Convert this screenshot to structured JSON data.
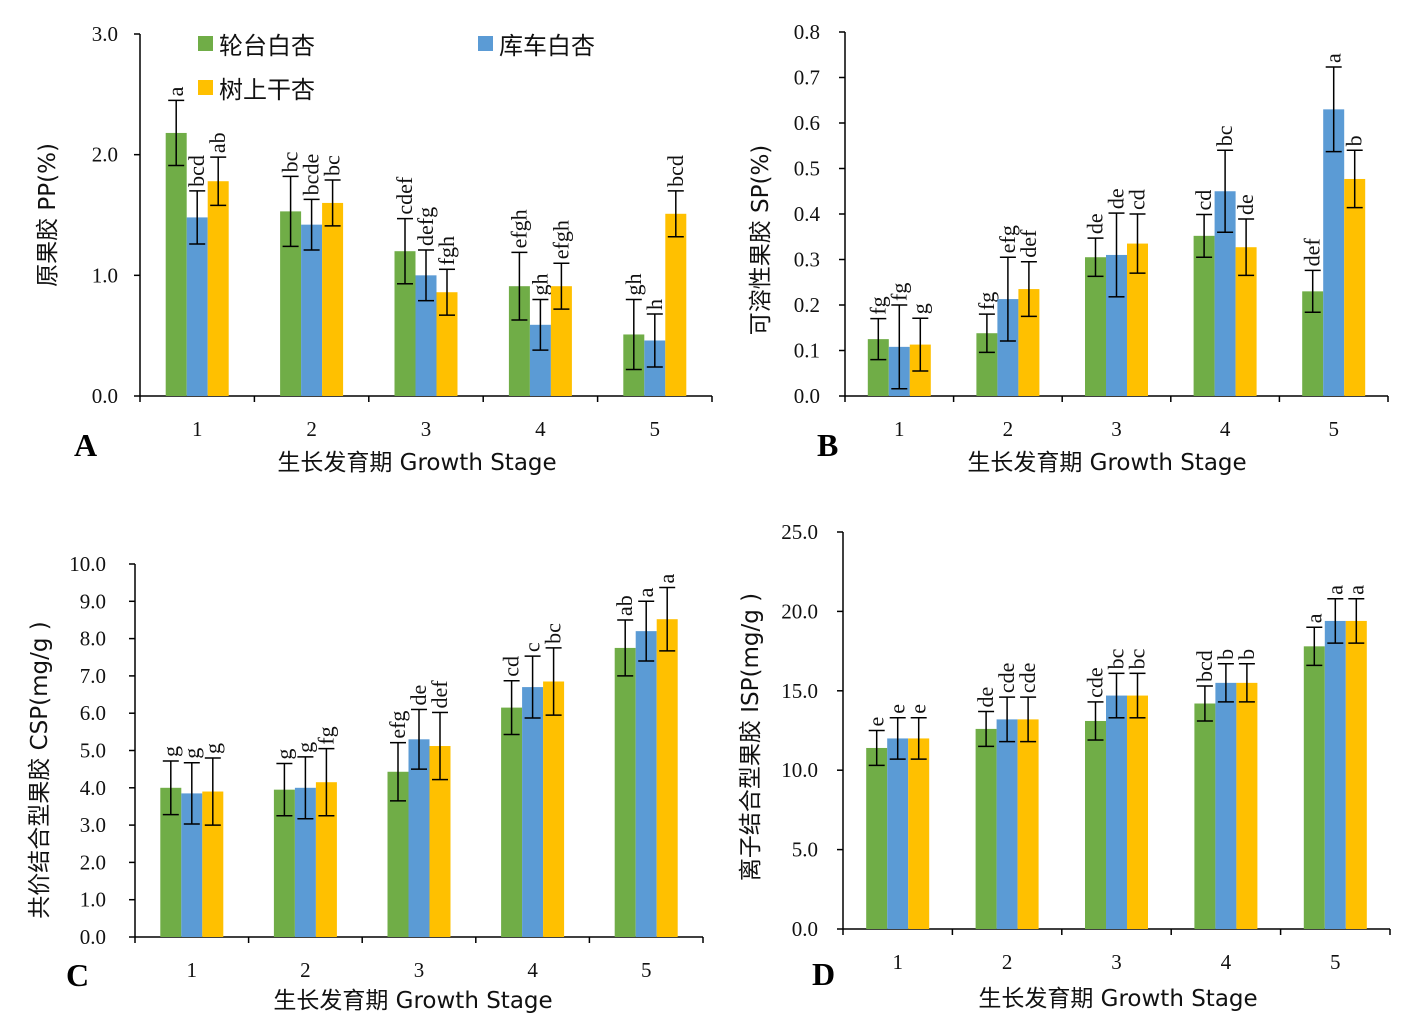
{
  "colors": {
    "series": [
      "#70AD47",
      "#5B9BD5",
      "#FFC000"
    ],
    "errorbar": "#000000",
    "axis": "#000000"
  },
  "legend": [
    "轮台白杏",
    "库车白杏",
    "树上干杏"
  ],
  "chart_data": [
    {
      "type": "bar",
      "panel": "A",
      "categories": [
        "1",
        "2",
        "3",
        "4",
        "5"
      ],
      "ylabel": "原果胶 PP(%)",
      "xlabel": "生长发育期 Growth Stage",
      "ylim": [
        0,
        3.0
      ],
      "yticks": [
        "0.0",
        "1.0",
        "2.0",
        "3.0"
      ],
      "legend_position": "top",
      "series": [
        {
          "name": "轮台白杏",
          "values": [
            2.18,
            1.53,
            1.2,
            0.91,
            0.51
          ],
          "errors": [
            0.27,
            0.29,
            0.27,
            0.28,
            0.29
          ],
          "labels": [
            "a",
            "bc",
            "cdef",
            "efgh",
            "gh"
          ]
        },
        {
          "name": "库车白杏",
          "values": [
            1.48,
            1.42,
            1.0,
            0.59,
            0.46
          ],
          "errors": [
            0.22,
            0.21,
            0.21,
            0.21,
            0.22
          ],
          "labels": [
            "bcd",
            "bcde",
            "defg",
            "gh",
            "h"
          ]
        },
        {
          "name": "树上干杏",
          "values": [
            1.78,
            1.6,
            0.86,
            0.91,
            1.51
          ],
          "errors": [
            0.2,
            0.19,
            0.19,
            0.19,
            0.19
          ],
          "labels": [
            "ab",
            "bc",
            "fgh",
            "efgh",
            "bcd"
          ]
        }
      ]
    },
    {
      "type": "bar",
      "panel": "B",
      "categories": [
        "1",
        "2",
        "3",
        "4",
        "5"
      ],
      "ylabel": "可溶性果胶 SP(%)",
      "xlabel": "生长发育期 Growth Stage",
      "ylim": [
        0,
        0.8
      ],
      "yticks": [
        "0.0",
        "0.1",
        "0.2",
        "0.3",
        "0.4",
        "0.5",
        "0.6",
        "0.7",
        "0.8"
      ],
      "series": [
        {
          "name": "轮台白杏",
          "values": [
            0.125,
            0.138,
            0.305,
            0.352,
            0.23
          ],
          "errors": [
            0.045,
            0.042,
            0.042,
            0.047,
            0.046
          ],
          "labels": [
            "fg",
            "fg",
            "de",
            "cd",
            "def"
          ]
        },
        {
          "name": "库车白杏",
          "values": [
            0.108,
            0.213,
            0.31,
            0.45,
            0.63
          ],
          "errors": [
            0.092,
            0.092,
            0.092,
            0.09,
            0.093
          ],
          "labels": [
            "fg",
            "efg",
            "de",
            "bc",
            "a"
          ]
        },
        {
          "name": "树上干杏",
          "values": [
            0.113,
            0.235,
            0.335,
            0.327,
            0.477
          ],
          "errors": [
            0.058,
            0.06,
            0.065,
            0.062,
            0.063
          ],
          "labels": [
            "g",
            "def",
            "cd",
            "de",
            "b"
          ]
        }
      ]
    },
    {
      "type": "bar",
      "panel": "C",
      "categories": [
        "1",
        "2",
        "3",
        "4",
        "5"
      ],
      "ylabel": "共价结合型果胶 CSP(mg/g )",
      "xlabel": "生长发育期 Growth Stage",
      "ylim": [
        0,
        10.0
      ],
      "yticks": [
        "0.0",
        "1.0",
        "2.0",
        "3.0",
        "4.0",
        "5.0",
        "6.0",
        "7.0",
        "8.0",
        "9.0",
        "10.0"
      ],
      "series": [
        {
          "name": "轮台白杏",
          "values": [
            4.0,
            3.95,
            4.43,
            6.15,
            7.75
          ],
          "errors": [
            0.72,
            0.7,
            0.78,
            0.72,
            0.75
          ],
          "labels": [
            "g",
            "g",
            "efg",
            "cd",
            "ab"
          ]
        },
        {
          "name": "库车白杏",
          "values": [
            3.85,
            4.0,
            5.3,
            6.7,
            8.2
          ],
          "errors": [
            0.82,
            0.83,
            0.8,
            0.83,
            0.8
          ],
          "labels": [
            "g",
            "g",
            "de",
            "c",
            "a"
          ]
        },
        {
          "name": "树上干杏",
          "values": [
            3.9,
            4.15,
            5.12,
            6.85,
            8.52
          ],
          "errors": [
            0.9,
            0.9,
            0.9,
            0.9,
            0.85
          ],
          "labels": [
            "g",
            "fg",
            "def",
            "bc",
            "a"
          ]
        }
      ]
    },
    {
      "type": "bar",
      "panel": "D",
      "categories": [
        "1",
        "2",
        "3",
        "4",
        "5"
      ],
      "ylabel": "离子结合型果胶 ISP(mg/g )",
      "xlabel": "生长发育期 Growth Stage",
      "ylim": [
        0,
        25.0
      ],
      "yticks": [
        "0.0",
        "5.0",
        "10.0",
        "15.0",
        "20.0",
        "25.0"
      ],
      "series": [
        {
          "name": "轮台白杏",
          "values": [
            11.4,
            12.6,
            13.1,
            14.2,
            17.8
          ],
          "errors": [
            1.1,
            1.1,
            1.2,
            1.1,
            1.2
          ],
          "labels": [
            "e",
            "de",
            "cde",
            "bcd",
            "a"
          ]
        },
        {
          "name": "库车白杏",
          "values": [
            12.0,
            13.2,
            14.7,
            15.5,
            19.4
          ],
          "errors": [
            1.3,
            1.4,
            1.4,
            1.2,
            1.4
          ],
          "labels": [
            "e",
            "cde",
            "bc",
            "b",
            "a"
          ]
        },
        {
          "name": "树上干杏",
          "values": [
            12.0,
            13.2,
            14.7,
            15.5,
            19.4
          ],
          "errors": [
            1.3,
            1.4,
            1.4,
            1.2,
            1.4
          ],
          "labels": [
            "e",
            "cde",
            "bc",
            "b",
            "a"
          ]
        }
      ]
    }
  ]
}
